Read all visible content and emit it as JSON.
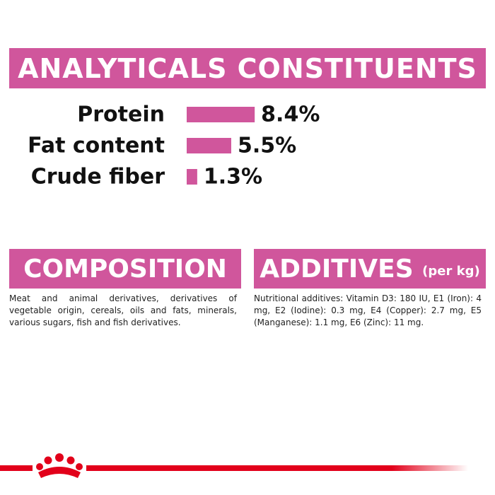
{
  "header": {
    "title": "ANALYTICALS CONSTITUENTS"
  },
  "chart_data": {
    "type": "bar",
    "categories": [
      "Protein",
      "Fat content",
      "Crude fiber"
    ],
    "values": [
      8.4,
      5.5,
      1.3
    ],
    "value_labels": [
      "8.4%",
      "5.5%",
      "1.3%"
    ],
    "color": "#d0569c"
  },
  "composition": {
    "title": "COMPOSITION",
    "text": "Meat and animal derivatives, derivatives of vegetable origin, cereals, oils and fats, minerals, various sugars, fish and fish derivatives."
  },
  "additives": {
    "title": "ADDITIVES",
    "unit": "(per kg)",
    "text": "Nutritional additives: Vitamin D3: 180 IU, E1 (Iron): 4 mg, E2 (Iodine): 0.3 mg, E4 (Copper): 2.7 mg, E5 (Manganese): 1.1 mg, E6 (Zinc): 11 mg."
  }
}
